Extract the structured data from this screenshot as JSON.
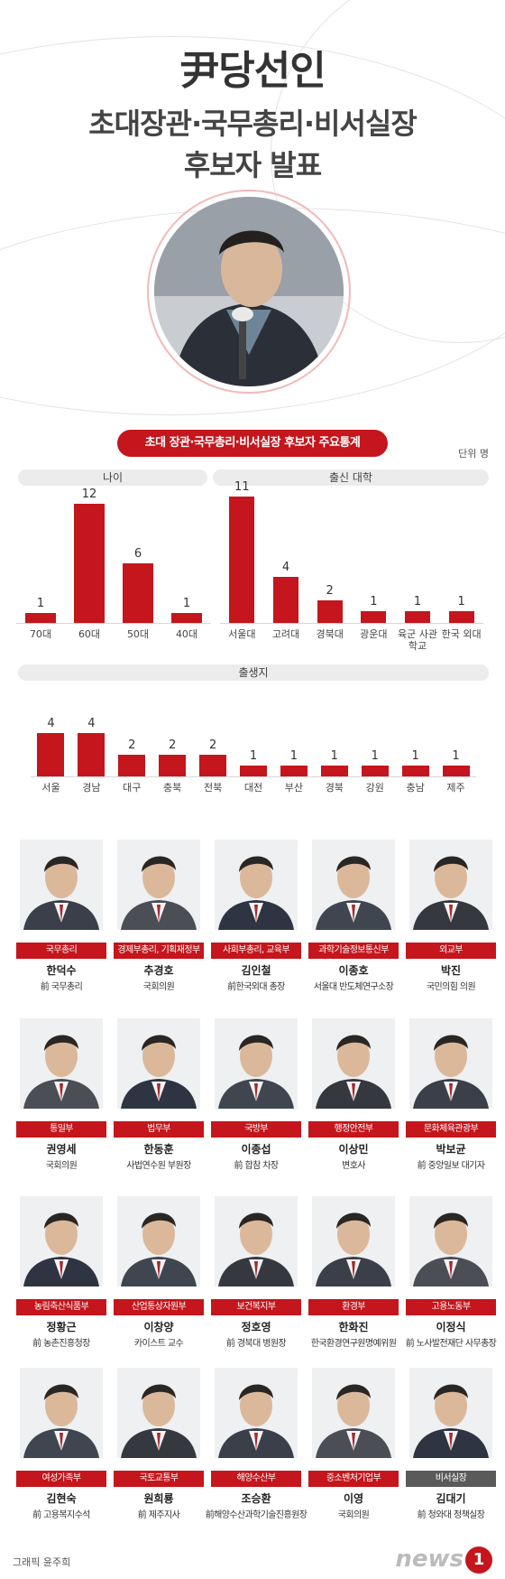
{
  "header": {
    "title": "尹당선인",
    "subtitle_line1": "초대장관·국무총리·비서실장",
    "subtitle_line2": "후보자 발표"
  },
  "stats": {
    "banner": "초대 장관·국무총리·비서실장 후보자 주요통계",
    "unit": "단위 명"
  },
  "chart_data": [
    {
      "type": "bar",
      "title": "나이",
      "categories": [
        "70대",
        "60대",
        "50대",
        "40대"
      ],
      "values": [
        1,
        12,
        6,
        1
      ]
    },
    {
      "type": "bar",
      "title": "출신 대학",
      "categories": [
        "서울대",
        "고려대",
        "경북대",
        "광운대",
        "육군 사관학교",
        "한국 외대"
      ],
      "values": [
        11,
        4,
        2,
        1,
        1,
        1
      ]
    },
    {
      "type": "bar",
      "title": "출생지",
      "categories": [
        "서울",
        "경남",
        "대구",
        "충북",
        "전북",
        "대전",
        "부산",
        "경북",
        "강원",
        "충남",
        "제주"
      ],
      "values": [
        4,
        4,
        2,
        2,
        2,
        1,
        1,
        1,
        1,
        1,
        1
      ]
    }
  ],
  "people": [
    {
      "role": "국무총리",
      "name": "한덕수",
      "desc": "前 국무총리"
    },
    {
      "role": "경제부총리, 기획재정부",
      "name": "추경호",
      "desc": "국회의원"
    },
    {
      "role": "사회부총리, 교육부",
      "name": "김인철",
      "desc": "前한국외대 총장"
    },
    {
      "role": "과학기술정보통신부",
      "name": "이종호",
      "desc": "서울대 반도체연구소장"
    },
    {
      "role": "외교부",
      "name": "박진",
      "desc": "국민의힘 의원"
    },
    {
      "role": "통일부",
      "name": "권영세",
      "desc": "국회의원"
    },
    {
      "role": "법무부",
      "name": "한동훈",
      "desc": "사법연수원 부원장"
    },
    {
      "role": "국방부",
      "name": "이종섭",
      "desc": "前 합참 차장"
    },
    {
      "role": "행정안전부",
      "name": "이상민",
      "desc": "변호사"
    },
    {
      "role": "문화체육관광부",
      "name": "박보균",
      "desc": "前 중앙일보 대기자"
    },
    {
      "role": "농림축산식품부",
      "name": "정황근",
      "desc": "前 농촌진흥청장"
    },
    {
      "role": "산업통상자원부",
      "name": "이창양",
      "desc": "카이스트 교수"
    },
    {
      "role": "보건복지부",
      "name": "정호영",
      "desc": "前 경북대 병원장"
    },
    {
      "role": "환경부",
      "name": "한화진",
      "desc": "한국환경연구원명예위원"
    },
    {
      "role": "고용노동부",
      "name": "이정식",
      "desc": "前 노사발전재단 사무총장"
    },
    {
      "role": "여성가족부",
      "name": "김현숙",
      "desc": "前 고용복지수석"
    },
    {
      "role": "국토교통부",
      "name": "원희룡",
      "desc": "前 제주지사"
    },
    {
      "role": "해양수산부",
      "name": "조승환",
      "desc": "前해양수산과학기술진흥원장"
    },
    {
      "role": "중소벤처기업부",
      "name": "이영",
      "desc": "국회의원"
    },
    {
      "role": "비서실장",
      "name": "김대기",
      "desc": "前 청와대 정책실장"
    }
  ],
  "footer": {
    "credit": "그래픽 윤주희",
    "logo": "news",
    "logo_mark": "1"
  },
  "colors": {
    "accent": "#c4161c",
    "chief_of_staff": "#5a5a5a"
  }
}
